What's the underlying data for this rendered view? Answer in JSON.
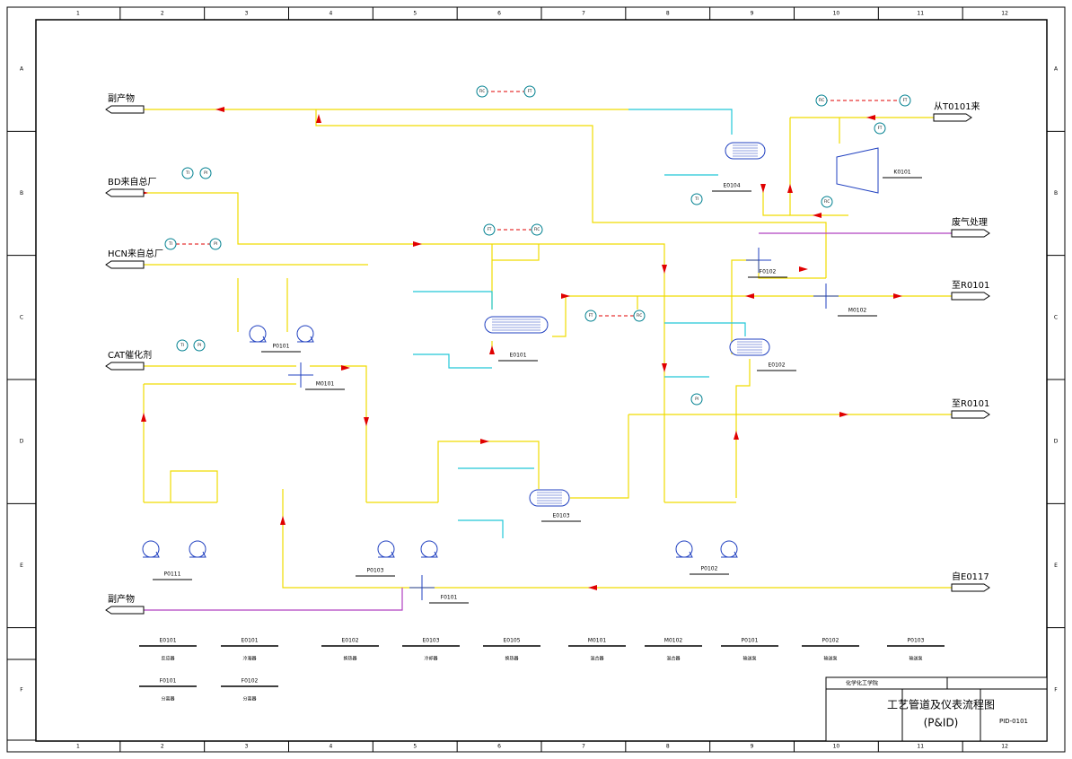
{
  "frame": {
    "columns": [
      "1",
      "2",
      "3",
      "4",
      "5",
      "6",
      "7",
      "8",
      "9",
      "10",
      "11",
      "12"
    ],
    "rows": [
      "A",
      "B",
      "C",
      "D",
      "E",
      "F"
    ]
  },
  "streams": [
    {
      "label": "副产物"
    },
    {
      "label": "BD来自总厂"
    },
    {
      "label": "HCN来自总厂"
    },
    {
      "label": "CAT催化剂"
    },
    {
      "label": "副产物"
    },
    {
      "label": "从T0101来"
    },
    {
      "label": "废气处理"
    },
    {
      "label": "至R0101"
    },
    {
      "label": "至R0101"
    },
    {
      "label": "自E0117"
    }
  ],
  "equipment": [
    {
      "tag": "E0104"
    },
    {
      "tag": "K0101"
    },
    {
      "tag": "E0101"
    },
    {
      "tag": "F0102"
    },
    {
      "tag": "M0102"
    },
    {
      "tag": "E0102"
    },
    {
      "tag": "P0101"
    },
    {
      "tag": "M0101"
    },
    {
      "tag": "P0111"
    },
    {
      "tag": "P0103"
    },
    {
      "tag": "E0103"
    },
    {
      "tag": "P0102"
    },
    {
      "tag": "F0101"
    }
  ],
  "instruments": [
    "FIC",
    "FT",
    "FIC",
    "FT",
    "TI",
    "PI",
    "FT",
    "FIC",
    "TI",
    "PI",
    "FT",
    "FIC",
    "FT",
    "FIC",
    "TI",
    "PI",
    "TI",
    "PI"
  ],
  "legend": [
    {
      "tag": "E0101",
      "name": "反应器"
    },
    {
      "tag": "E0101",
      "name": "冷凝器"
    },
    {
      "tag": "E0102",
      "name": "换热器"
    },
    {
      "tag": "E0103",
      "name": "冷却器"
    },
    {
      "tag": "E0105",
      "name": "换热器"
    },
    {
      "tag": "M0101",
      "name": "混合器"
    },
    {
      "tag": "M0102",
      "name": "混合器"
    },
    {
      "tag": "P0101",
      "name": "输送泵"
    },
    {
      "tag": "P0102",
      "name": "输送泵"
    },
    {
      "tag": "P0103",
      "name": "输送泵"
    },
    {
      "tag": "F0101",
      "name": "分离器"
    },
    {
      "tag": "F0102",
      "name": "分离器"
    }
  ],
  "title_block": {
    "school": "化学化工学院",
    "title": "工艺管道及仪表流程图",
    "subtitle": "(P&ID)",
    "drawing_no": "PID-0101"
  }
}
